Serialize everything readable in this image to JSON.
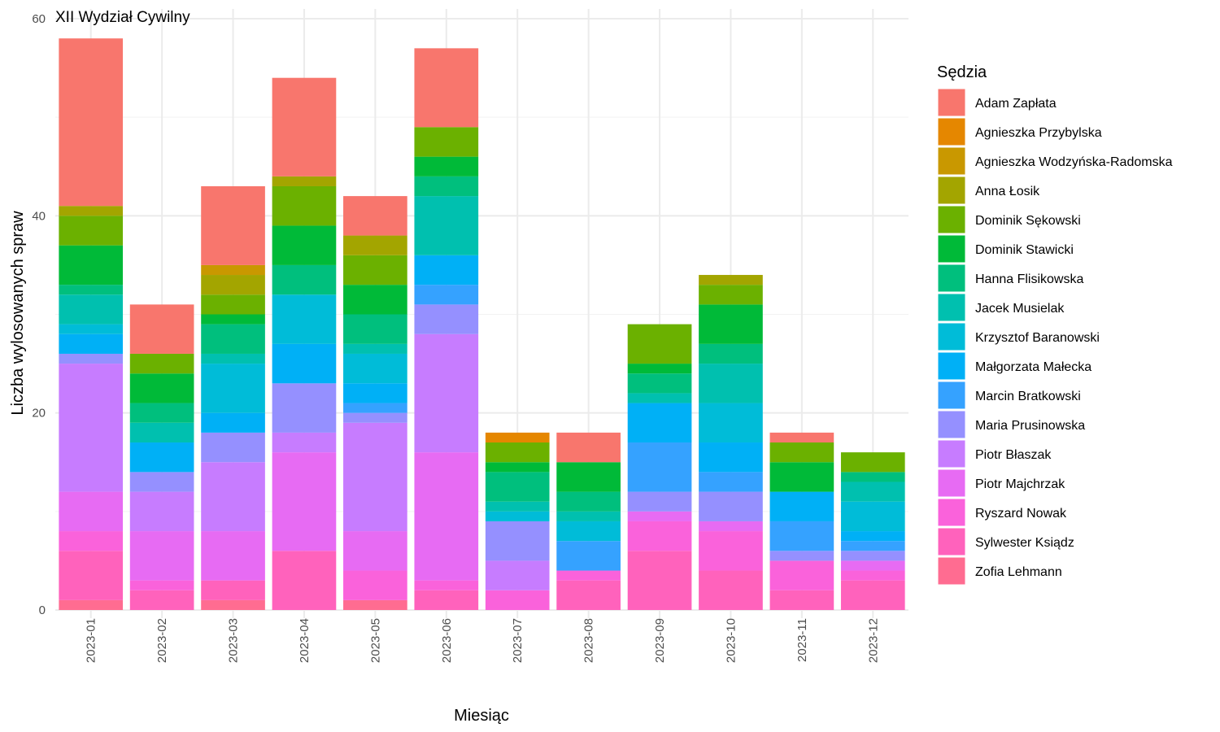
{
  "chart_data": {
    "type": "bar",
    "stacked": true,
    "title": "XII Wydział Cywilny",
    "xlabel": "Miesiąc",
    "ylabel": "Liczba wylosowanych spraw",
    "ylim": [
      0,
      60
    ],
    "yticks": [
      0,
      20,
      40,
      60
    ],
    "grid": true,
    "legend_title": "Sędzia",
    "legend_position": "right",
    "categories": [
      "2023-01",
      "2023-02",
      "2023-03",
      "2023-04",
      "2023-05",
      "2023-06",
      "2023-07",
      "2023-08",
      "2023-09",
      "2023-10",
      "2023-11",
      "2023-12"
    ],
    "series": [
      {
        "name": "Adam Zapłata",
        "color": "#F8766D",
        "values": [
          17,
          5,
          8,
          10,
          4,
          8,
          0,
          3,
          0,
          0,
          1,
          0
        ]
      },
      {
        "name": "Agnieszka Przybylska",
        "color": "#E58700",
        "values": [
          0,
          0,
          0,
          0,
          0,
          0,
          1,
          0,
          0,
          0,
          0,
          0
        ]
      },
      {
        "name": "Agnieszka Wodzyńska-Radomska",
        "color": "#C99800",
        "values": [
          0,
          0,
          1,
          0,
          0,
          0,
          0,
          0,
          0,
          0,
          0,
          0
        ]
      },
      {
        "name": "Anna Łosik",
        "color": "#A3A500",
        "values": [
          1,
          0,
          2,
          1,
          2,
          0,
          0,
          0,
          0,
          1,
          0,
          0
        ]
      },
      {
        "name": "Dominik Sękowski",
        "color": "#6BB100",
        "values": [
          3,
          2,
          2,
          4,
          3,
          3,
          2,
          0,
          4,
          2,
          2,
          2
        ]
      },
      {
        "name": "Dominik Stawicki",
        "color": "#00BA38",
        "values": [
          4,
          3,
          1,
          4,
          3,
          2,
          1,
          3,
          1,
          4,
          3,
          0
        ]
      },
      {
        "name": "Hanna Flisikowska",
        "color": "#00BF7D",
        "values": [
          1,
          2,
          3,
          3,
          3,
          2,
          3,
          2,
          2,
          2,
          0,
          1
        ]
      },
      {
        "name": "Jacek Musielak",
        "color": "#00C0AF",
        "values": [
          3,
          2,
          1,
          0,
          1,
          6,
          1,
          1,
          1,
          4,
          0,
          2
        ]
      },
      {
        "name": "Krzysztof Baranowski",
        "color": "#00BCD8",
        "values": [
          1,
          0,
          5,
          5,
          3,
          0,
          1,
          2,
          0,
          4,
          0,
          3
        ]
      },
      {
        "name": "Małgorzata Małecka",
        "color": "#00B0F6",
        "values": [
          2,
          3,
          2,
          4,
          2,
          3,
          0,
          0,
          4,
          3,
          3,
          1
        ]
      },
      {
        "name": "Marcin Bratkowski",
        "color": "#35A2FF",
        "values": [
          0,
          0,
          0,
          0,
          1,
          2,
          0,
          3,
          5,
          2,
          3,
          1
        ]
      },
      {
        "name": "Maria Prusinowska",
        "color": "#9590FF",
        "values": [
          1,
          2,
          3,
          5,
          1,
          3,
          4,
          0,
          2,
          3,
          1,
          1
        ]
      },
      {
        "name": "Piotr Błaszak",
        "color": "#C77CFF",
        "values": [
          13,
          4,
          7,
          2,
          11,
          12,
          3,
          0,
          0,
          0,
          0,
          0
        ]
      },
      {
        "name": "Piotr Majchrzak",
        "color": "#E76BF3",
        "values": [
          4,
          5,
          5,
          10,
          4,
          13,
          0,
          0,
          1,
          1,
          0,
          1
        ]
      },
      {
        "name": "Ryszard Nowak",
        "color": "#FA62DB",
        "values": [
          2,
          1,
          0,
          0,
          3,
          1,
          2,
          1,
          3,
          4,
          3,
          1
        ]
      },
      {
        "name": "Sylwester Ksiądz",
        "color": "#FF62BC",
        "values": [
          5,
          2,
          2,
          6,
          0,
          2,
          0,
          3,
          6,
          4,
          2,
          3
        ]
      },
      {
        "name": "Zofia Lehmann",
        "color": "#FF6C91",
        "values": [
          1,
          0,
          1,
          0,
          1,
          0,
          0,
          0,
          0,
          0,
          0,
          0
        ]
      }
    ]
  }
}
